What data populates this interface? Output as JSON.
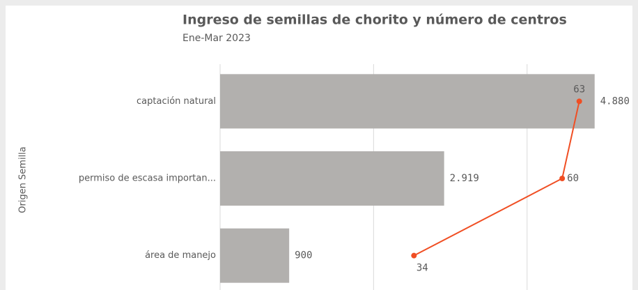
{
  "chart_data": {
    "type": "bar",
    "orientation": "horizontal",
    "title": "Ingreso de semillas de chorito y número de centros",
    "subtitle": "Ene-Mar 2023",
    "y_label": "Origen Semilla",
    "categories": [
      "captación natural",
      "permiso de escasa importan...",
      "área de manejo"
    ],
    "values": [
      4880,
      2919,
      900
    ],
    "value_labels": [
      "4.880",
      "2.919",
      "900"
    ],
    "color": "#b2b0ae",
    "xlim": [
      0,
      5200
    ],
    "xticks": [
      0,
      2000,
      4000
    ],
    "grid": true,
    "line": {
      "values": [
        63,
        60,
        34
      ],
      "color": "#f04e23",
      "axis": "x2"
    },
    "x2lim": [
      0,
      70
    ]
  }
}
